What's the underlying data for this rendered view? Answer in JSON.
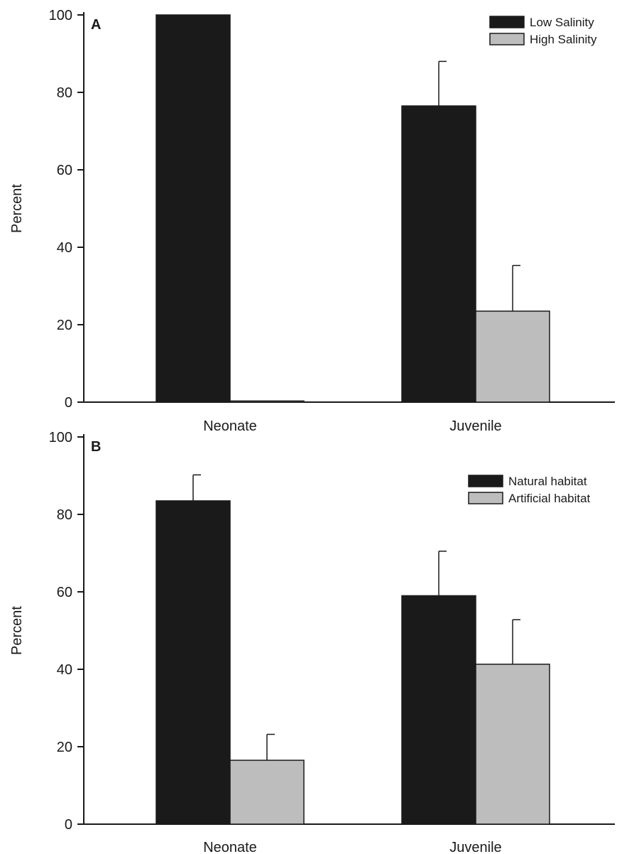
{
  "chart_data": [
    {
      "panel_label": "A",
      "type": "bar",
      "categories": [
        "Neonate",
        "Juvenile"
      ],
      "series": [
        {
          "name": "Low Salinity",
          "values": [
            100,
            76.5
          ],
          "errors": [
            0,
            11.5
          ],
          "color": "#1a1a1a"
        },
        {
          "name": "High Salinity",
          "values": [
            0.3,
            23.5
          ],
          "errors": [
            0,
            11.8
          ],
          "color": "#bdbdbd"
        }
      ],
      "ylabel": "Percent",
      "ylim": [
        0,
        100
      ],
      "yticks": [
        "0",
        "20",
        "40",
        "60",
        "80",
        "100"
      ],
      "grid": false,
      "legend_position": "top-right"
    },
    {
      "panel_label": "B",
      "type": "bar",
      "categories": [
        "Neonate",
        "Juvenile"
      ],
      "series": [
        {
          "name": "Natural habitat",
          "values": [
            83.5,
            59
          ],
          "errors": [
            6.7,
            11.5
          ],
          "color": "#1a1a1a"
        },
        {
          "name": "Artificial habitat",
          "values": [
            16.5,
            41.3
          ],
          "errors": [
            6.7,
            11.5
          ],
          "color": "#bdbdbd"
        }
      ],
      "ylabel": "Percent",
      "ylim": [
        0,
        100
      ],
      "yticks": [
        "0",
        "20",
        "40",
        "60",
        "80",
        "100"
      ],
      "grid": false,
      "legend_position": "top-right"
    }
  ]
}
